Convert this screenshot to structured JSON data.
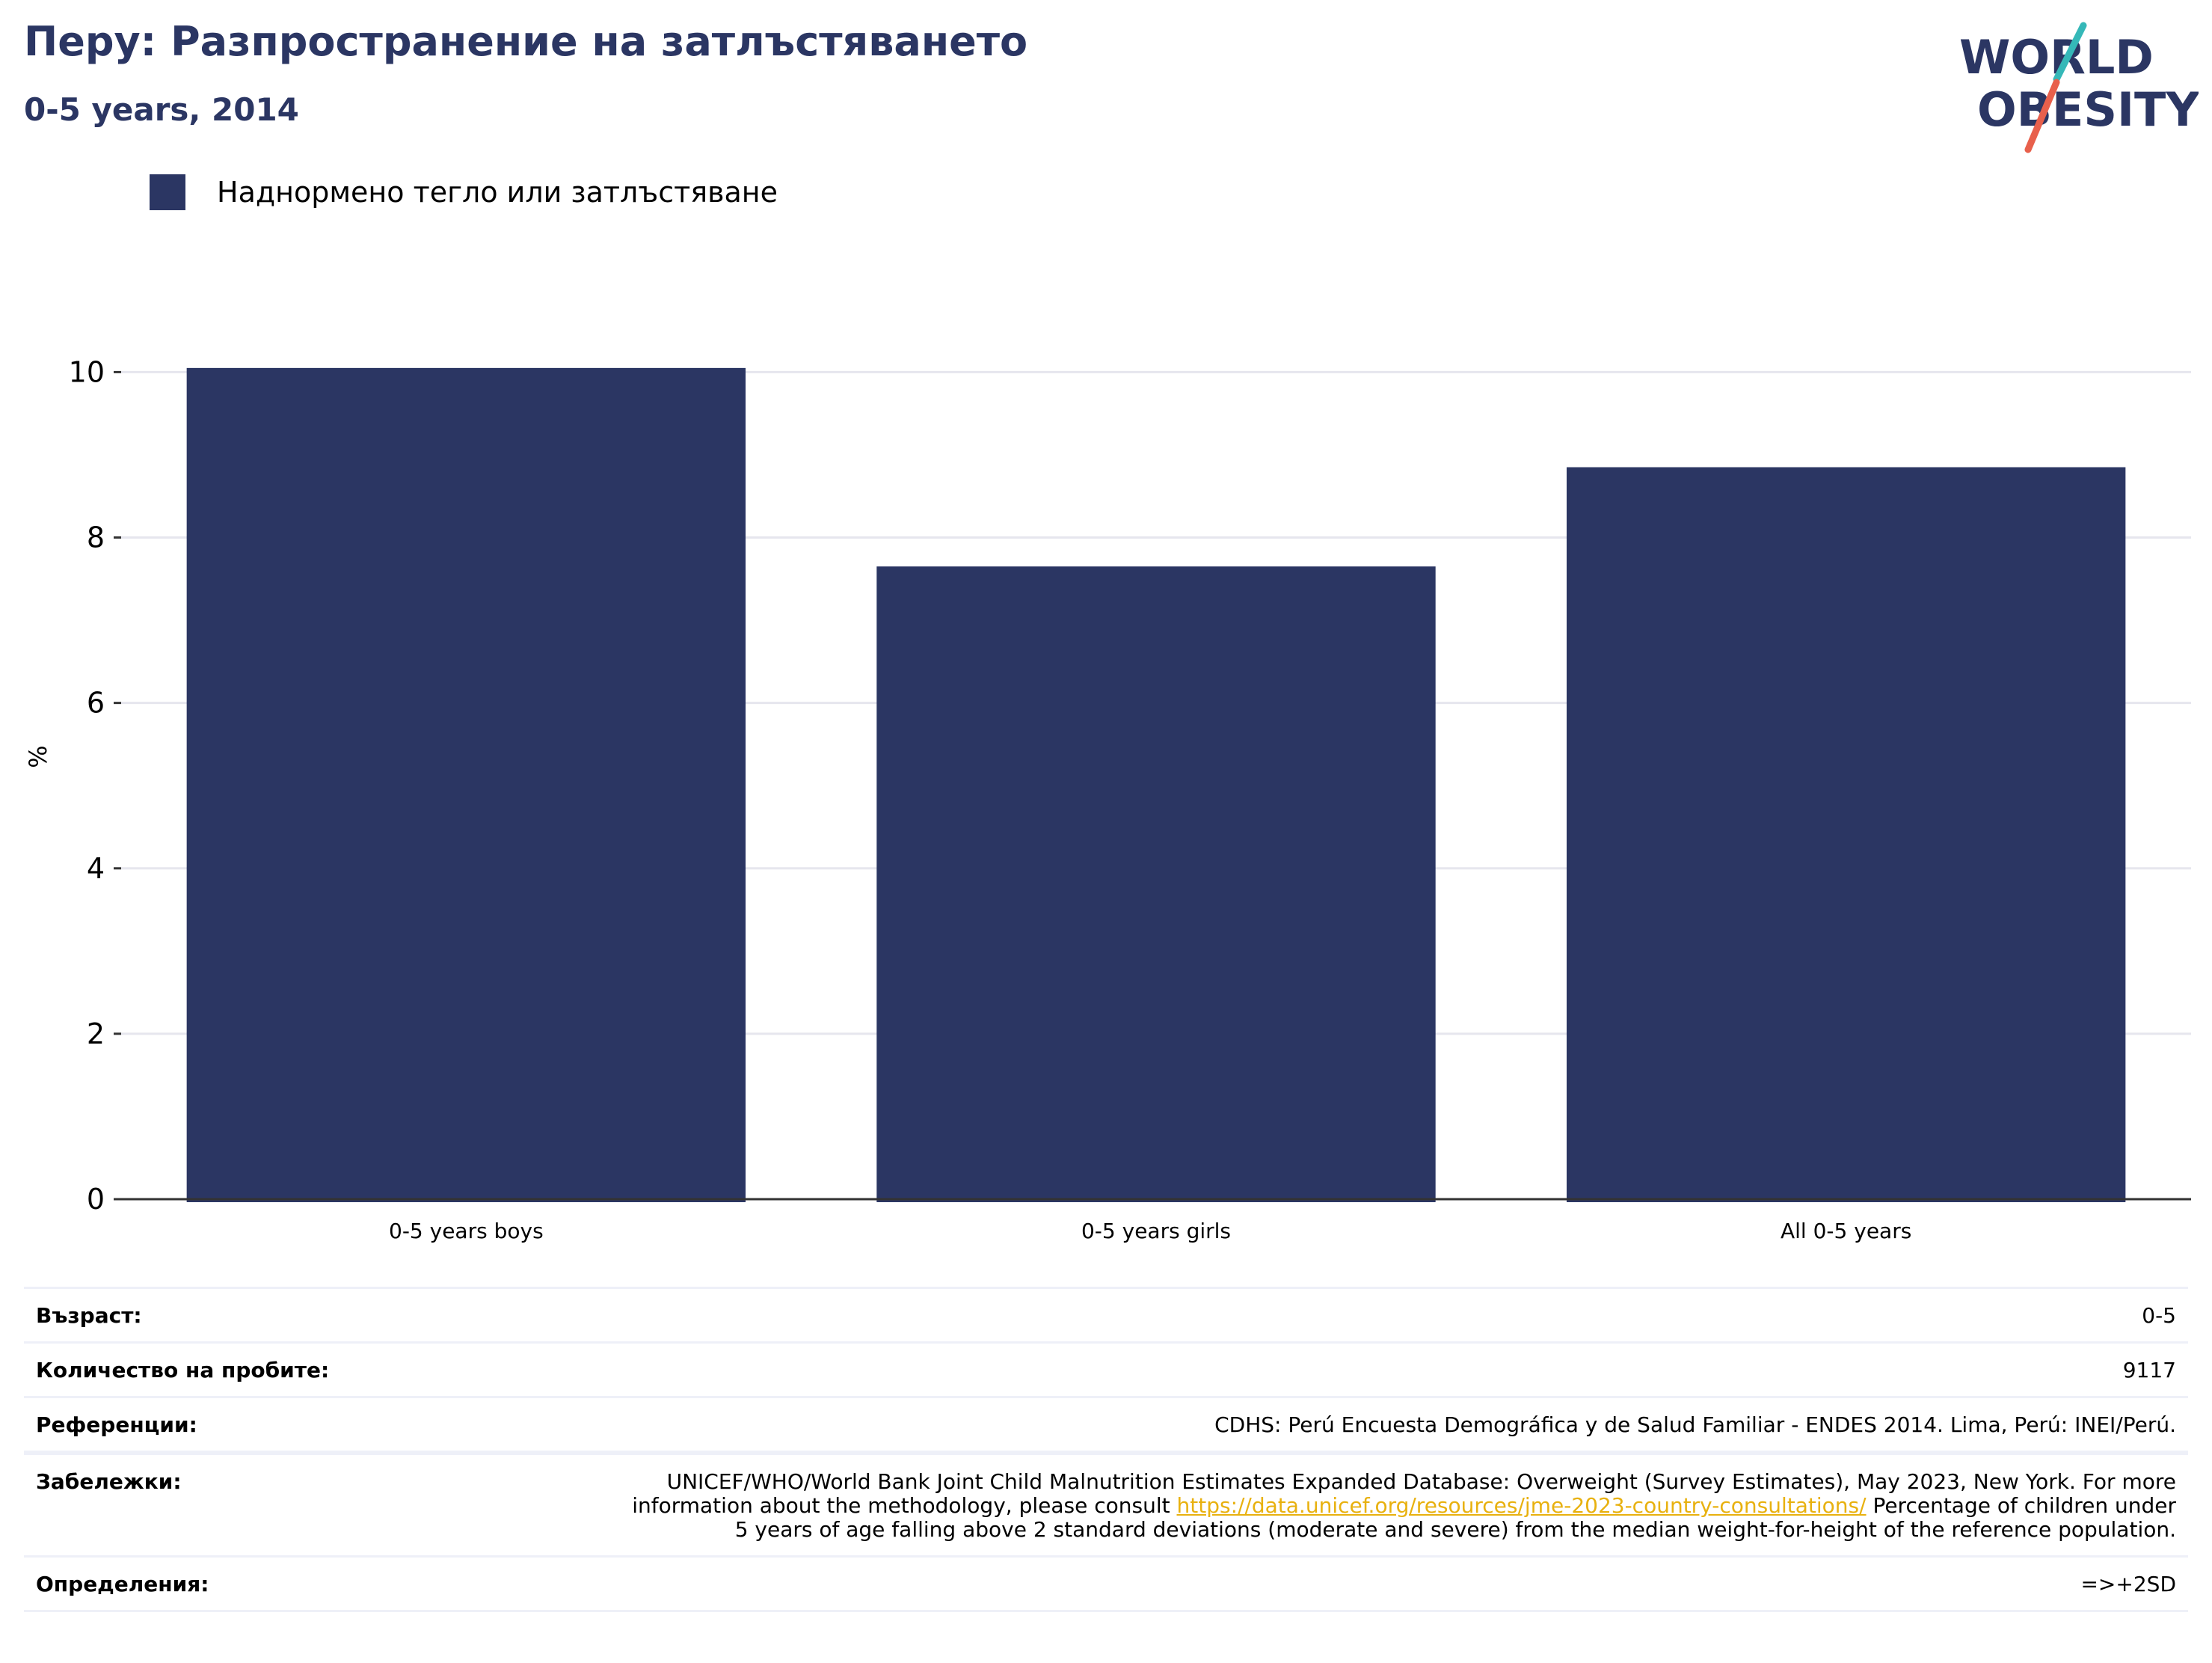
{
  "header": {
    "title": "Перу: Разпространение на затлъстяването",
    "subtitle": "0-5 years, 2014"
  },
  "logo": {
    "line1": "WORLD",
    "line2": "OBESITY",
    "accent_teal": "#35b8b8",
    "accent_red": "#e8604c",
    "text_color": "#2b3663"
  },
  "legend": {
    "label": "Наднормено тегло или затлъстяване",
    "color": "#2b3663"
  },
  "chart_data": {
    "type": "bar",
    "categories": [
      "0-5 years boys",
      "0-5 years girls",
      "All 0-5 years"
    ],
    "series": [
      {
        "name": "Наднормено тегло или затлъстяване",
        "values": [
          10.05,
          7.65,
          8.85
        ],
        "color": "#2b3663"
      }
    ],
    "ylabel": "%",
    "yticks": [
      0,
      2,
      4,
      6,
      8,
      10
    ],
    "ylim": [
      0,
      10.7
    ],
    "grid": true
  },
  "meta": {
    "rows": [
      {
        "label": "Възраст:",
        "value": "0-5"
      },
      {
        "label": "Количество на пробите:",
        "value": "9117"
      },
      {
        "label": "Референции:",
        "value": "CDHS: Perú Encuesta Demográfica y de Salud Familiar - ENDES 2014. Lima, Perú: INEI/Perú."
      }
    ],
    "notes": {
      "label": "Забележки:",
      "before": "UNICEF/WHO/World Bank Joint Child Malnutrition Estimates Expanded Database: Overweight (Survey Estimates), May 2023, New York. For more information about the methodology, please consult ",
      "link": "https://data.unicef.org/resources/jme-2023-country-consultations/",
      "after": " Percentage of children under 5 years of age falling above 2 standard deviations (moderate and severe) from the median weight-for-height of the reference population."
    },
    "definitions": {
      "label": "Определения:",
      "value": "=>+2SD"
    }
  }
}
